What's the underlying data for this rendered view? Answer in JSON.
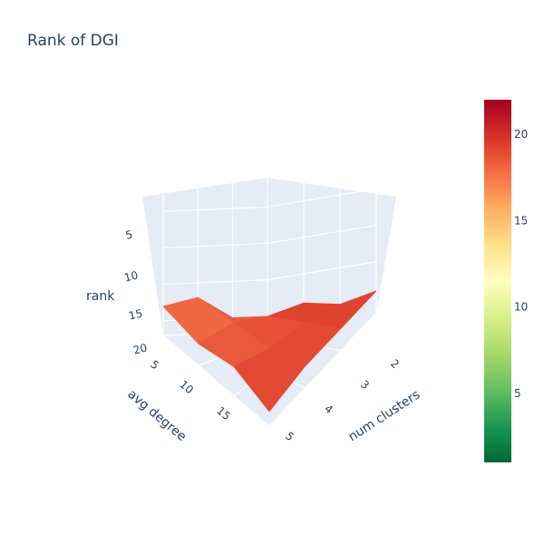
{
  "chart_data": {
    "type": "surface",
    "title": "Rank of DGI",
    "xlabel": "num clusters",
    "ylabel": "avg degree",
    "zlabel": "rank",
    "x": [
      2,
      3,
      4,
      5
    ],
    "y": [
      5,
      10,
      15,
      20
    ],
    "z": [
      [
        18,
        17,
        20,
        20
      ],
      [
        19,
        18,
        19,
        19
      ],
      [
        18,
        19,
        19,
        20
      ],
      [
        20,
        19,
        19,
        19
      ]
    ],
    "x_ticks": [
      "2",
      "3",
      "4",
      "5"
    ],
    "y_ticks": [
      "5",
      "10",
      "15"
    ],
    "z_ticks": [
      "5",
      "10",
      "15",
      "20"
    ],
    "z_axis_reversed": true,
    "zlim": [
      1,
      22
    ],
    "colorscale": "RdYlGn (reversed)",
    "colorbar_ticks": [
      "5",
      "10",
      "15",
      "20"
    ],
    "colorbar_range": [
      1,
      22
    ],
    "colors": {
      "scene_bg": "#e5ecf6",
      "grid": "#ffffff",
      "text": "#2a3f5f"
    }
  }
}
